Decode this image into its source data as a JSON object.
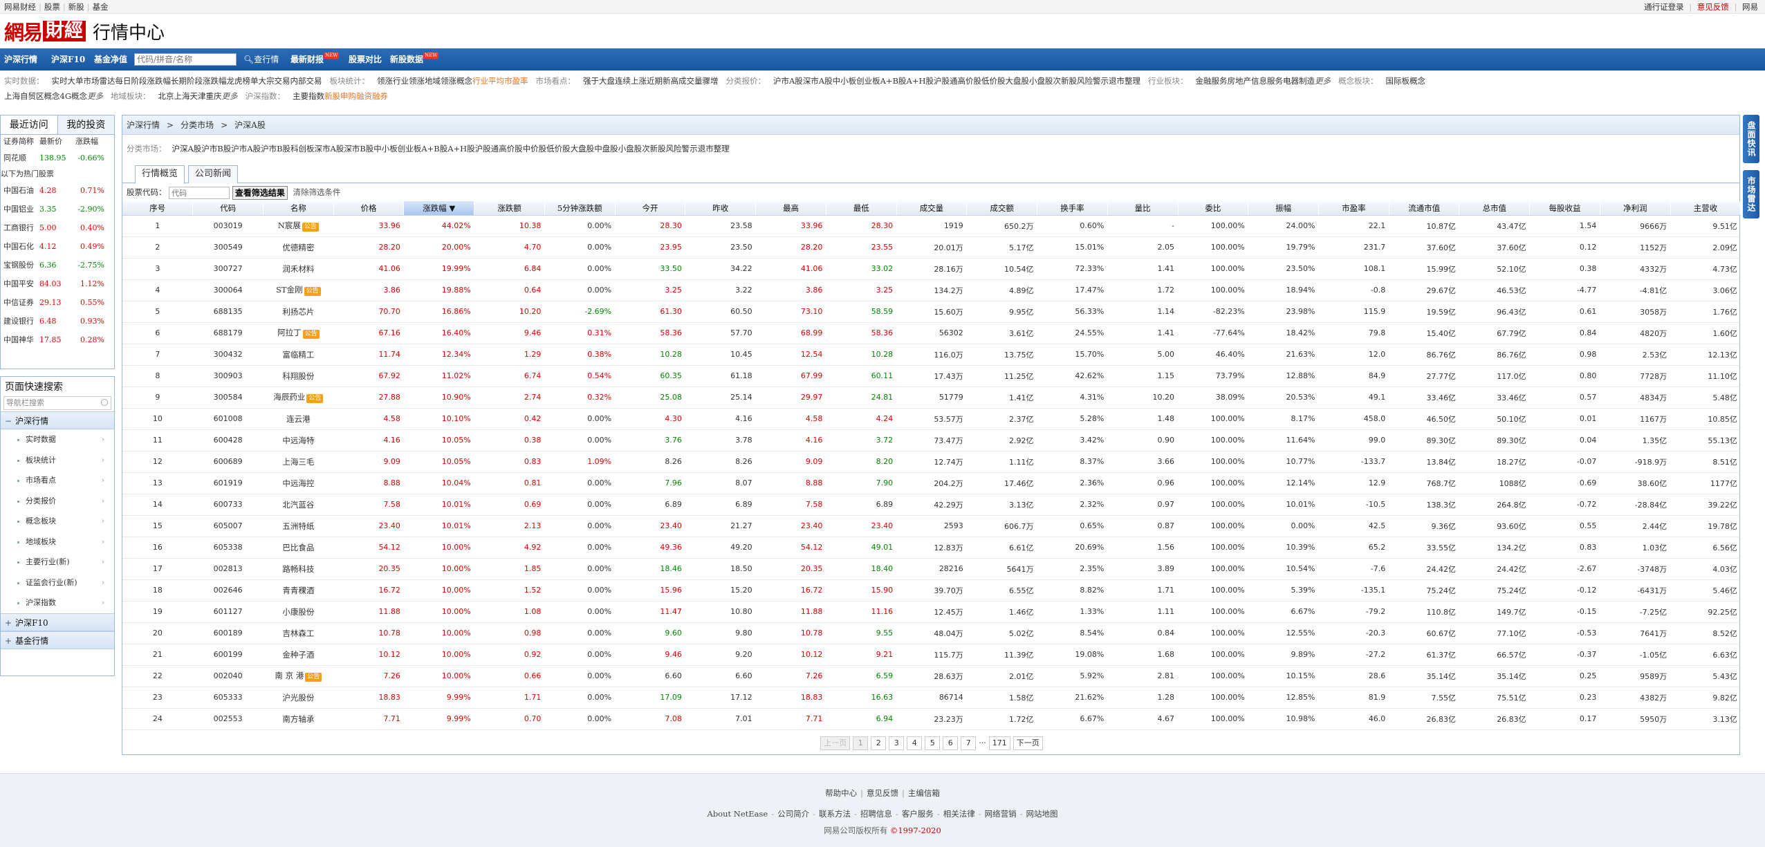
{
  "topbar": {
    "left": [
      "网易财经",
      "股票",
      "新股",
      "基金"
    ],
    "right_login": "通行证登录",
    "right_feedback": "意见反馈",
    "right_home": "网易"
  },
  "logo": {
    "wy": "網易",
    "cj": "財經",
    "title": "行情中心"
  },
  "nav": {
    "items": [
      "沪深行情",
      "沪深F10",
      "基金净值"
    ],
    "search_placeholder": "代码/拼音/名称",
    "query": "查行情",
    "hot": [
      {
        "label": "最新财报",
        "new": "NEW"
      },
      {
        "label": "股票对比",
        "new": ""
      },
      {
        "label": "新股数据",
        "new": "NEW"
      }
    ]
  },
  "links": {
    "row1": [
      {
        "lab": "实时数据：",
        "items": [
          "实时大单",
          "市场雷达",
          "每日阶段涨跌幅",
          "长期阶段涨跌幅",
          "龙虎榜单",
          "大宗交易",
          "内部交易"
        ]
      },
      {
        "lab": "板块统计：",
        "items": [
          "领涨行业",
          "领涨地域",
          "领涨概念"
        ],
        "orange": "行业平均市盈率"
      },
      {
        "lab": "市场看点：",
        "items": [
          "强于大盘",
          "连续上涨",
          "近期新高",
          "成交量骤增"
        ]
      },
      {
        "lab": "分类报价：",
        "items": [
          "沪市A股",
          "深市A股",
          "中小板",
          "创业板",
          "A+B股",
          "A+H股",
          "沪股通",
          "高价股",
          "低价股",
          "大盘股",
          "小盘股",
          "次新股",
          "风险警示",
          "退市整理"
        ]
      },
      {
        "lab": "行业板块：",
        "items": [
          "金融服务",
          "房地产",
          "信息服务",
          "电器制造"
        ],
        "more": "更多"
      },
      {
        "lab": "概念板块：",
        "items": [
          "国际板概念"
        ]
      }
    ],
    "row2": [
      {
        "lab": "",
        "items": [
          "上海自贸区概念",
          "4G概念"
        ],
        "more": "更多"
      },
      {
        "lab": "地域板块：",
        "items": [
          "北京",
          "上海",
          "天津",
          "重庆"
        ],
        "more": "更多"
      },
      {
        "lab": "沪深指数：",
        "items": [
          "主要指数"
        ],
        "orange2": [
          "新股申购",
          "融资融券"
        ]
      }
    ]
  },
  "sidebar": {
    "tabs": [
      "最近访问",
      "我的投资"
    ],
    "headers": [
      "证券简称",
      "最新价",
      "涨跌幅"
    ],
    "recent": [
      {
        "n": "同花顺",
        "p": "138.95",
        "c": "-0.66%",
        "d": "dn"
      }
    ],
    "hot_label": "以下为热门股票",
    "hot": [
      {
        "n": "中国石油",
        "p": "4.28",
        "c": "0.71%",
        "d": "up"
      },
      {
        "n": "中国铝业",
        "p": "3.35",
        "c": "-2.90%",
        "d": "dn"
      },
      {
        "n": "工商银行",
        "p": "5.00",
        "c": "0.40%",
        "d": "up"
      },
      {
        "n": "中国石化",
        "p": "4.12",
        "c": "0.49%",
        "d": "up"
      },
      {
        "n": "宝钢股份",
        "p": "6.36",
        "c": "-2.75%",
        "d": "dn"
      },
      {
        "n": "中国平安",
        "p": "84.03",
        "c": "1.12%",
        "d": "up"
      },
      {
        "n": "中信证券",
        "p": "29.13",
        "c": "0.55%",
        "d": "up"
      },
      {
        "n": "建设银行",
        "p": "6.48",
        "c": "0.93%",
        "d": "up"
      },
      {
        "n": "中国神华",
        "p": "17.85",
        "c": "0.28%",
        "d": "up"
      }
    ],
    "quick_title": "页面快速搜索",
    "quick_placeholder": "导航栏搜索",
    "group1": "沪深行情",
    "subs": [
      "实时数据",
      "板块统计",
      "市场看点",
      "分类报价",
      "概念板块",
      "地域板块",
      "主要行业(新)",
      "证监会行业(新)",
      "沪深指数"
    ],
    "group2": "沪深F10",
    "group3": "基金行情"
  },
  "main": {
    "crumb": [
      "沪深行情",
      ">",
      "分类市场",
      ">",
      "沪深A股"
    ],
    "cats_label": "分类市场：",
    "cats": [
      "沪深A股",
      "沪市B股",
      "沪市A股",
      "沪市B股",
      "科创板",
      "深市A股",
      "深市B股",
      "中小板",
      "创业板",
      "A+B股",
      "A+H股",
      "沪股通",
      "高价股",
      "中价股",
      "低价股",
      "大盘股",
      "中盘股",
      "小盘股",
      "次新股",
      "风险警示",
      "退市整理"
    ],
    "subtabs": [
      "行情概览",
      "公司新闻"
    ],
    "filter_label": "股票代码：",
    "filter_placeholder": "代码",
    "filter_btn": "查看筛选结果",
    "filter_clear": "清除筛选条件",
    "columns": [
      "序号",
      "代码",
      "名称",
      "价格",
      "涨跌幅",
      "涨跌额",
      "5分钟涨跌额",
      "今开",
      "昨收",
      "最高",
      "最低",
      "成交量",
      "成交额",
      "换手率",
      "量比",
      "委比",
      "振幅",
      "市盈率",
      "流通市值",
      "总市值",
      "每股收益",
      "净利润",
      "主营收"
    ],
    "sort_mark": "▼",
    "badge": "公告",
    "rows": [
      [
        "1",
        "003019",
        "N宸展",
        "33.96",
        "44.02%",
        "10.38",
        "0.00%",
        "28.30",
        "23.58",
        "33.96",
        "28.30",
        "1919",
        "650.2万",
        "0.60%",
        "-",
        "100.00%",
        "24.00%",
        "22.1",
        "10.87亿",
        "43.47亿",
        "1.54",
        "9666万",
        "9.51亿"
      ],
      [
        "2",
        "300549",
        "优德精密",
        "28.20",
        "20.00%",
        "4.70",
        "0.00%",
        "23.95",
        "23.50",
        "28.20",
        "23.55",
        "20.01万",
        "5.17亿",
        "15.01%",
        "2.05",
        "100.00%",
        "19.79%",
        "231.7",
        "37.60亿",
        "37.60亿",
        "0.12",
        "1152万",
        "2.09亿"
      ],
      [
        "3",
        "300727",
        "润禾材料",
        "41.06",
        "19.99%",
        "6.84",
        "0.00%",
        "33.50",
        "34.22",
        "41.06",
        "33.02",
        "28.16万",
        "10.54亿",
        "72.33%",
        "1.41",
        "100.00%",
        "23.50%",
        "108.1",
        "15.99亿",
        "52.10亿",
        "0.38",
        "4332万",
        "4.73亿"
      ],
      [
        "4",
        "300064",
        "ST金刚",
        "3.86",
        "19.88%",
        "0.64",
        "0.00%",
        "3.25",
        "3.22",
        "3.86",
        "3.25",
        "134.2万",
        "4.89亿",
        "17.47%",
        "1.72",
        "100.00%",
        "18.94%",
        "-0.8",
        "29.67亿",
        "46.53亿",
        "-4.77",
        "-4.81亿",
        "3.06亿"
      ],
      [
        "5",
        "688135",
        "利扬芯片",
        "70.70",
        "16.86%",
        "10.20",
        "-2.69%",
        "61.30",
        "60.50",
        "73.10",
        "58.59",
        "15.60万",
        "9.95亿",
        "56.33%",
        "1.14",
        "-82.23%",
        "23.98%",
        "115.9",
        "19.59亿",
        "96.43亿",
        "0.61",
        "3058万",
        "1.76亿"
      ],
      [
        "6",
        "688179",
        "阿拉丁",
        "67.16",
        "16.40%",
        "9.46",
        "0.31%",
        "58.36",
        "57.70",
        "68.99",
        "58.36",
        "56302",
        "3.61亿",
        "24.55%",
        "1.41",
        "-77.64%",
        "18.42%",
        "79.8",
        "15.40亿",
        "67.79亿",
        "0.84",
        "4820万",
        "1.60亿"
      ],
      [
        "7",
        "300432",
        "富临精工",
        "11.74",
        "12.34%",
        "1.29",
        "0.38%",
        "10.28",
        "10.45",
        "12.54",
        "10.28",
        "116.0万",
        "13.75亿",
        "15.70%",
        "5.00",
        "46.40%",
        "21.63%",
        "12.0",
        "86.76亿",
        "86.76亿",
        "0.98",
        "2.53亿",
        "12.13亿"
      ],
      [
        "8",
        "300903",
        "科翔股份",
        "67.92",
        "11.02%",
        "6.74",
        "0.54%",
        "60.35",
        "61.18",
        "67.99",
        "60.11",
        "17.43万",
        "11.25亿",
        "42.62%",
        "1.15",
        "73.79%",
        "12.88%",
        "84.9",
        "27.77亿",
        "117.0亿",
        "0.80",
        "7728万",
        "11.10亿"
      ],
      [
        "9",
        "300584",
        "海辰药业",
        "27.88",
        "10.90%",
        "2.74",
        "0.32%",
        "25.08",
        "25.14",
        "29.97",
        "24.81",
        "51779",
        "1.41亿",
        "4.31%",
        "10.20",
        "38.09%",
        "20.53%",
        "49.1",
        "33.46亿",
        "33.46亿",
        "0.57",
        "4834万",
        "5.48亿"
      ],
      [
        "10",
        "601008",
        "连云港",
        "4.58",
        "10.10%",
        "0.42",
        "0.00%",
        "4.30",
        "4.16",
        "4.58",
        "4.24",
        "53.57万",
        "2.37亿",
        "5.28%",
        "1.48",
        "100.00%",
        "8.17%",
        "458.0",
        "46.50亿",
        "50.10亿",
        "0.01",
        "1167万",
        "10.85亿"
      ],
      [
        "11",
        "600428",
        "中远海特",
        "4.16",
        "10.05%",
        "0.38",
        "0.00%",
        "3.76",
        "3.78",
        "4.16",
        "3.72",
        "73.47万",
        "2.92亿",
        "3.42%",
        "0.90",
        "100.00%",
        "11.64%",
        "99.0",
        "89.30亿",
        "89.30亿",
        "0.04",
        "1.35亿",
        "55.13亿"
      ],
      [
        "12",
        "600689",
        "上海三毛",
        "9.09",
        "10.05%",
        "0.83",
        "1.09%",
        "8.26",
        "8.26",
        "9.09",
        "8.20",
        "12.74万",
        "1.11亿",
        "8.37%",
        "3.66",
        "100.00%",
        "10.77%",
        "-133.7",
        "13.84亿",
        "18.27亿",
        "-0.07",
        "-918.9万",
        "8.51亿"
      ],
      [
        "13",
        "601919",
        "中远海控",
        "8.88",
        "10.04%",
        "0.81",
        "0.00%",
        "7.96",
        "8.07",
        "8.88",
        "7.90",
        "204.2万",
        "17.46亿",
        "2.36%",
        "0.96",
        "100.00%",
        "12.14%",
        "12.9",
        "768.7亿",
        "1088亿",
        "0.69",
        "38.60亿",
        "1177亿"
      ],
      [
        "14",
        "600733",
        "北汽蓝谷",
        "7.58",
        "10.01%",
        "0.69",
        "0.00%",
        "6.89",
        "6.89",
        "7.58",
        "6.89",
        "42.29万",
        "3.13亿",
        "2.32%",
        "0.97",
        "100.00%",
        "10.01%",
        "-10.5",
        "138.3亿",
        "264.8亿",
        "-0.72",
        "-28.84亿",
        "39.22亿"
      ],
      [
        "15",
        "605007",
        "五洲特纸",
        "23.40",
        "10.01%",
        "2.13",
        "0.00%",
        "23.40",
        "21.27",
        "23.40",
        "23.40",
        "2593",
        "606.7万",
        "0.65%",
        "0.87",
        "100.00%",
        "0.00%",
        "42.5",
        "9.36亿",
        "93.60亿",
        "0.55",
        "2.44亿",
        "19.78亿"
      ],
      [
        "16",
        "605338",
        "巴比食品",
        "54.12",
        "10.00%",
        "4.92",
        "0.00%",
        "49.36",
        "49.20",
        "54.12",
        "49.01",
        "12.83万",
        "6.61亿",
        "20.69%",
        "1.56",
        "100.00%",
        "10.39%",
        "65.2",
        "33.55亿",
        "134.2亿",
        "0.83",
        "1.03亿",
        "6.56亿"
      ],
      [
        "17",
        "002813",
        "路畅科技",
        "20.35",
        "10.00%",
        "1.85",
        "0.00%",
        "18.46",
        "18.50",
        "20.35",
        "18.40",
        "28216",
        "5641万",
        "2.35%",
        "3.89",
        "100.00%",
        "10.54%",
        "-7.6",
        "24.42亿",
        "24.42亿",
        "-2.67",
        "-3748万",
        "4.03亿"
      ],
      [
        "18",
        "002646",
        "青青稞酒",
        "16.72",
        "10.00%",
        "1.52",
        "0.00%",
        "15.96",
        "15.20",
        "16.72",
        "15.90",
        "39.70万",
        "6.55亿",
        "8.82%",
        "1.71",
        "100.00%",
        "5.39%",
        "-135.1",
        "75.24亿",
        "75.24亿",
        "-0.12",
        "-6431万",
        "5.46亿"
      ],
      [
        "19",
        "601127",
        "小康股份",
        "11.88",
        "10.00%",
        "1.08",
        "0.00%",
        "11.47",
        "10.80",
        "11.88",
        "11.16",
        "12.45万",
        "1.46亿",
        "1.33%",
        "1.11",
        "100.00%",
        "6.67%",
        "-79.2",
        "110.8亿",
        "149.7亿",
        "-0.15",
        "-7.25亿",
        "92.25亿"
      ],
      [
        "20",
        "600189",
        "吉林森工",
        "10.78",
        "10.00%",
        "0.98",
        "0.00%",
        "9.60",
        "9.80",
        "10.78",
        "9.55",
        "48.04万",
        "5.02亿",
        "8.54%",
        "0.84",
        "100.00%",
        "12.55%",
        "-20.3",
        "60.67亿",
        "77.10亿",
        "-0.53",
        "7641万",
        "8.52亿"
      ],
      [
        "21",
        "600199",
        "金种子酒",
        "10.12",
        "10.00%",
        "0.92",
        "0.00%",
        "9.46",
        "9.20",
        "10.12",
        "9.21",
        "115.7万",
        "11.39亿",
        "19.08%",
        "1.68",
        "100.00%",
        "9.89%",
        "-27.2",
        "61.37亿",
        "66.57亿",
        "-0.37",
        "-1.05亿",
        "6.63亿"
      ],
      [
        "22",
        "002040",
        "南 京 港",
        "7.26",
        "10.00%",
        "0.66",
        "0.00%",
        "6.60",
        "6.60",
        "7.26",
        "6.59",
        "28.63万",
        "2.01亿",
        "5.92%",
        "2.81",
        "100.00%",
        "10.15%",
        "28.6",
        "35.14亿",
        "35.14亿",
        "0.25",
        "9589万",
        "5.43亿"
      ],
      [
        "23",
        "605333",
        "沪光股份",
        "18.83",
        "9.99%",
        "1.71",
        "0.00%",
        "17.09",
        "17.12",
        "18.83",
        "16.63",
        "86714",
        "1.58亿",
        "21.62%",
        "1.28",
        "100.00%",
        "12.85%",
        "81.9",
        "7.55亿",
        "75.51亿",
        "0.23",
        "4382万",
        "9.82亿"
      ],
      [
        "24",
        "002553",
        "南方轴承",
        "7.71",
        "9.99%",
        "0.70",
        "0.00%",
        "7.08",
        "7.01",
        "7.71",
        "6.94",
        "23.23万",
        "1.72亿",
        "6.67%",
        "4.67",
        "100.00%",
        "10.98%",
        "46.0",
        "26.83亿",
        "26.83亿",
        "0.17",
        "5950万",
        "3.13亿"
      ]
    ],
    "badge_rows": [
      1,
      4,
      6,
      9,
      22
    ],
    "pager": {
      "prev": "上一页",
      "pages": [
        "1",
        "2",
        "3",
        "4",
        "5",
        "6",
        "7"
      ],
      "dots": "···",
      "last": "171",
      "next": "下一页"
    }
  },
  "rtabs": [
    "盘面快讯",
    "市场雷达"
  ],
  "footer": {
    "l1": [
      "帮助中心",
      "意见反馈",
      "主编信箱"
    ],
    "l2": [
      "About NetEase",
      "公司简介",
      "联系方法",
      "招聘信息",
      "客户服务",
      "相关法律",
      "网络营销",
      "网站地图"
    ],
    "l3_pre": "网易公司版权所有 ",
    "l3_year": "©1997-2020"
  },
  "colors": {
    "up": "#e00000",
    "down": "#008800",
    "nav": "#1a56a0",
    "badge": "#f3a11b"
  }
}
